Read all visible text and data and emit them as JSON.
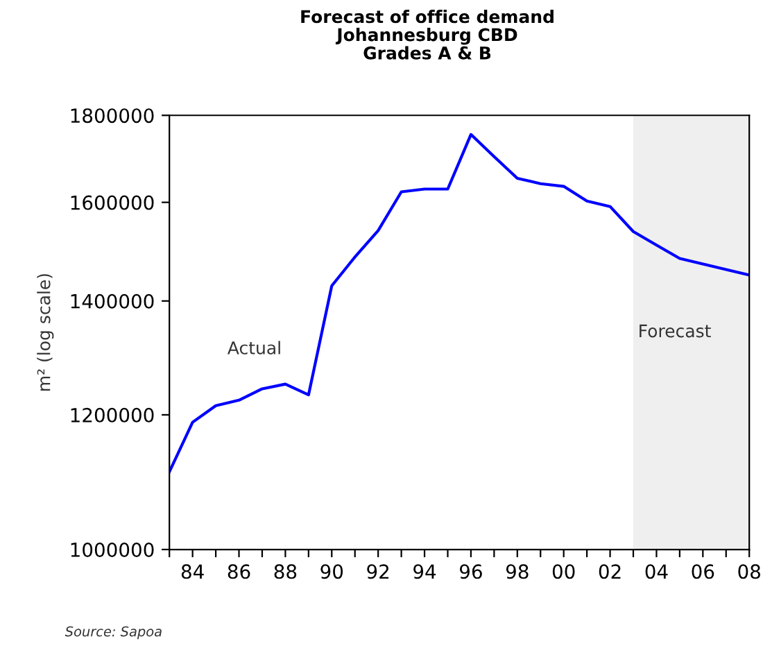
{
  "chart_data": {
    "type": "line",
    "title": "Forecast of office demand\nJohannesburg CBD\nGrades A & B",
    "ylabel": "m² (log scale)",
    "x": [
      1983,
      1984,
      1985,
      1986,
      1987,
      1988,
      1989,
      1990,
      1991,
      1992,
      1993,
      1994,
      1995,
      1996,
      1997,
      1998,
      1999,
      2000,
      2001,
      2002,
      2003,
      2004,
      2005,
      2006,
      2007,
      2008
    ],
    "series": [
      {
        "color": "#0000ff",
        "values": [
          1111000,
          1188000,
          1215000,
          1224000,
          1243000,
          1251000,
          1233000,
          1429000,
          1486000,
          1540000,
          1623000,
          1629000,
          1629000,
          1754000,
          1702000,
          1653000,
          1641000,
          1635000,
          1603000,
          1591000,
          1538000,
          1510000,
          1483000,
          1472000,
          1461000,
          1450000
        ]
      }
    ],
    "log": "y",
    "ylim": [
      1000000,
      1800000
    ],
    "yticks": [
      1000000,
      1200000,
      1400000,
      1600000,
      1800000
    ],
    "xlim": [
      1983,
      2008
    ],
    "xticks": [
      {
        "value": 1983,
        "label": null
      },
      {
        "value": 1984,
        "label": "84"
      },
      {
        "value": 1985,
        "label": null
      },
      {
        "value": 1986,
        "label": "86"
      },
      {
        "value": 1987,
        "label": null
      },
      {
        "value": 1988,
        "label": "88"
      },
      {
        "value": 1989,
        "label": null
      },
      {
        "value": 1990,
        "label": "90"
      },
      {
        "value": 1991,
        "label": null
      },
      {
        "value": 1992,
        "label": "92"
      },
      {
        "value": 1993,
        "label": null
      },
      {
        "value": 1994,
        "label": "94"
      },
      {
        "value": 1995,
        "label": null
      },
      {
        "value": 1996,
        "label": "96"
      },
      {
        "value": 1997,
        "label": null
      },
      {
        "value": 1998,
        "label": "98"
      },
      {
        "value": 1999,
        "label": null
      },
      {
        "value": 2000,
        "label": "00"
      },
      {
        "value": 2001,
        "label": null
      },
      {
        "value": 2002,
        "label": "02"
      },
      {
        "value": 2003,
        "label": null
      },
      {
        "value": 2004,
        "label": "04"
      },
      {
        "value": 2005,
        "label": null
      },
      {
        "value": 2006,
        "label": "06"
      },
      {
        "value": 2007,
        "label": null
      },
      {
        "value": 2008,
        "label": "08"
      }
    ],
    "bands": [
      {
        "axis": "x",
        "from": 2003,
        "to": 2008,
        "label": "Forecast",
        "color": "#efefef"
      }
    ],
    "annotations": [
      "Actual",
      "Source: Sapoa"
    ],
    "grid": false,
    "marker": "none",
    "line_style": "solid"
  }
}
